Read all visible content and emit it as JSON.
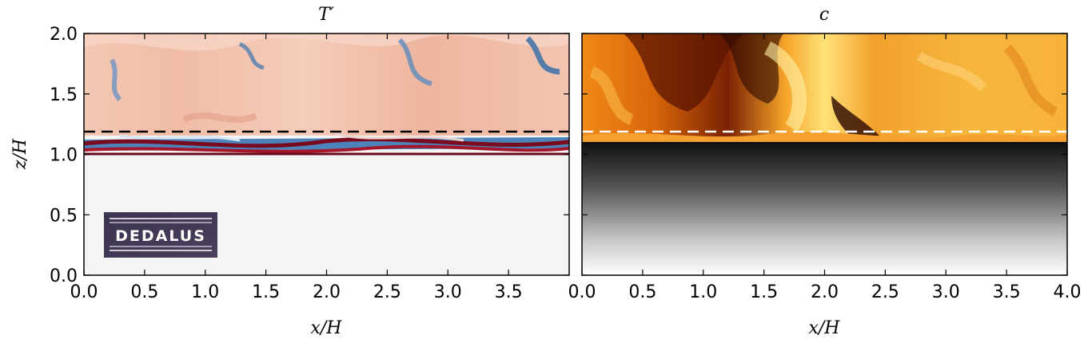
{
  "chart_data": [
    {
      "type": "heatmap",
      "title": "T′",
      "xlabel": "x/H",
      "ylabel": "z/H",
      "xlim": [
        0.0,
        4.0
      ],
      "ylim": [
        0.0,
        2.0
      ],
      "x_ticks": [
        "0.0",
        "0.5",
        "1.0",
        "1.5",
        "2.0",
        "2.5",
        "3.0",
        "3.5"
      ],
      "y_ticks": [
        "0.0",
        "0.5",
        "1.0",
        "1.5",
        "2.0"
      ],
      "colormap": "red-white-blue",
      "dashed_line": {
        "z": 1.18,
        "color": "#000000"
      },
      "logo": {
        "text": "DEDALUS"
      }
    },
    {
      "type": "heatmap",
      "title": "c",
      "xlabel": "x/H",
      "xlim": [
        0.0,
        4.0
      ],
      "ylim": [
        0.0,
        2.0
      ],
      "x_ticks": [
        "0.0",
        "0.5",
        "1.0",
        "1.5",
        "2.0",
        "2.5",
        "3.0",
        "3.5",
        "4.0"
      ],
      "colormap": "afmhot",
      "dashed_line": {
        "z": 1.18,
        "color": "#ffffff"
      }
    }
  ],
  "colors": {
    "temp_background": "#f4f4f4",
    "temp_warm": "#f2c2ac",
    "temp_cold": "#2e6fb0",
    "temp_hot": "#7a0a1e",
    "conc_bright": "#ffd060",
    "conc_mid": "#e07a10",
    "conc_dark": "#2a0800"
  }
}
